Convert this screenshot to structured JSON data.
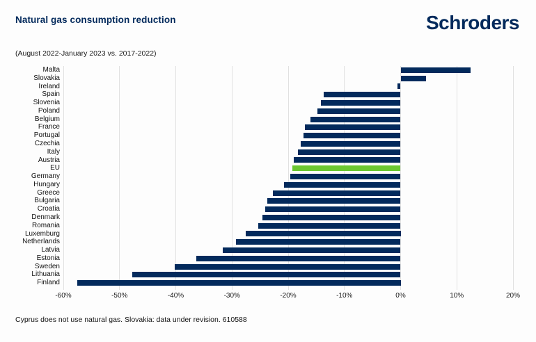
{
  "header": {
    "title": "Natural gas consumption reduction",
    "logo": "Schroders"
  },
  "subtitle": "(August 2022-January 2023 vs. 2017-2022)",
  "footer": "Cyprus does not use natural gas. Slovakia: data under revision. 610588",
  "colors": {
    "bar_navy": "#032a5c",
    "highlight_green": "#6cc832",
    "gridline": "#e1e1e1",
    "title_navy": "#032a5c",
    "text": "#1a1a1a",
    "background": "#fdfdfd"
  },
  "chart_data": {
    "type": "bar",
    "orientation": "horizontal",
    "title": "Natural gas consumption reduction",
    "subtitle": "(August 2022-January 2023 vs. 2017-2022)",
    "unit": "%",
    "grid": true,
    "xlim": [
      -60,
      20
    ],
    "x_ticks": [
      -60,
      -50,
      -40,
      -30,
      -20,
      -10,
      0,
      10,
      20
    ],
    "x_tick_labels": [
      "-60%",
      "-50%",
      "-40%",
      "-30%",
      "-20%",
      "-10%",
      "0%",
      "10%",
      "20%"
    ],
    "highlight_category": "EU",
    "categories": [
      "Malta",
      "Slovakia",
      "Ireland",
      "Spain",
      "Slovenia",
      "Poland",
      "Belgium",
      "France",
      "Portugal",
      "Czechia",
      "Italy",
      "Austria",
      "EU",
      "Germany",
      "Hungary",
      "Greece",
      "Bulgaria",
      "Croatia",
      "Denmark",
      "Romania",
      "Luxemburg",
      "Netherlands",
      "Latvia",
      "Estonia",
      "Sweden",
      "Lithuania",
      "Finland"
    ],
    "values": [
      12.5,
      4.5,
      -0.6,
      -13.7,
      -14.2,
      -14.8,
      -16.0,
      -17.0,
      -17.3,
      -17.8,
      -18.3,
      -19.0,
      -19.3,
      -19.6,
      -20.8,
      -22.7,
      -23.7,
      -24.1,
      -24.6,
      -25.3,
      -27.5,
      -29.3,
      -31.7,
      -36.4,
      -40.2,
      -47.7,
      -57.5
    ]
  }
}
